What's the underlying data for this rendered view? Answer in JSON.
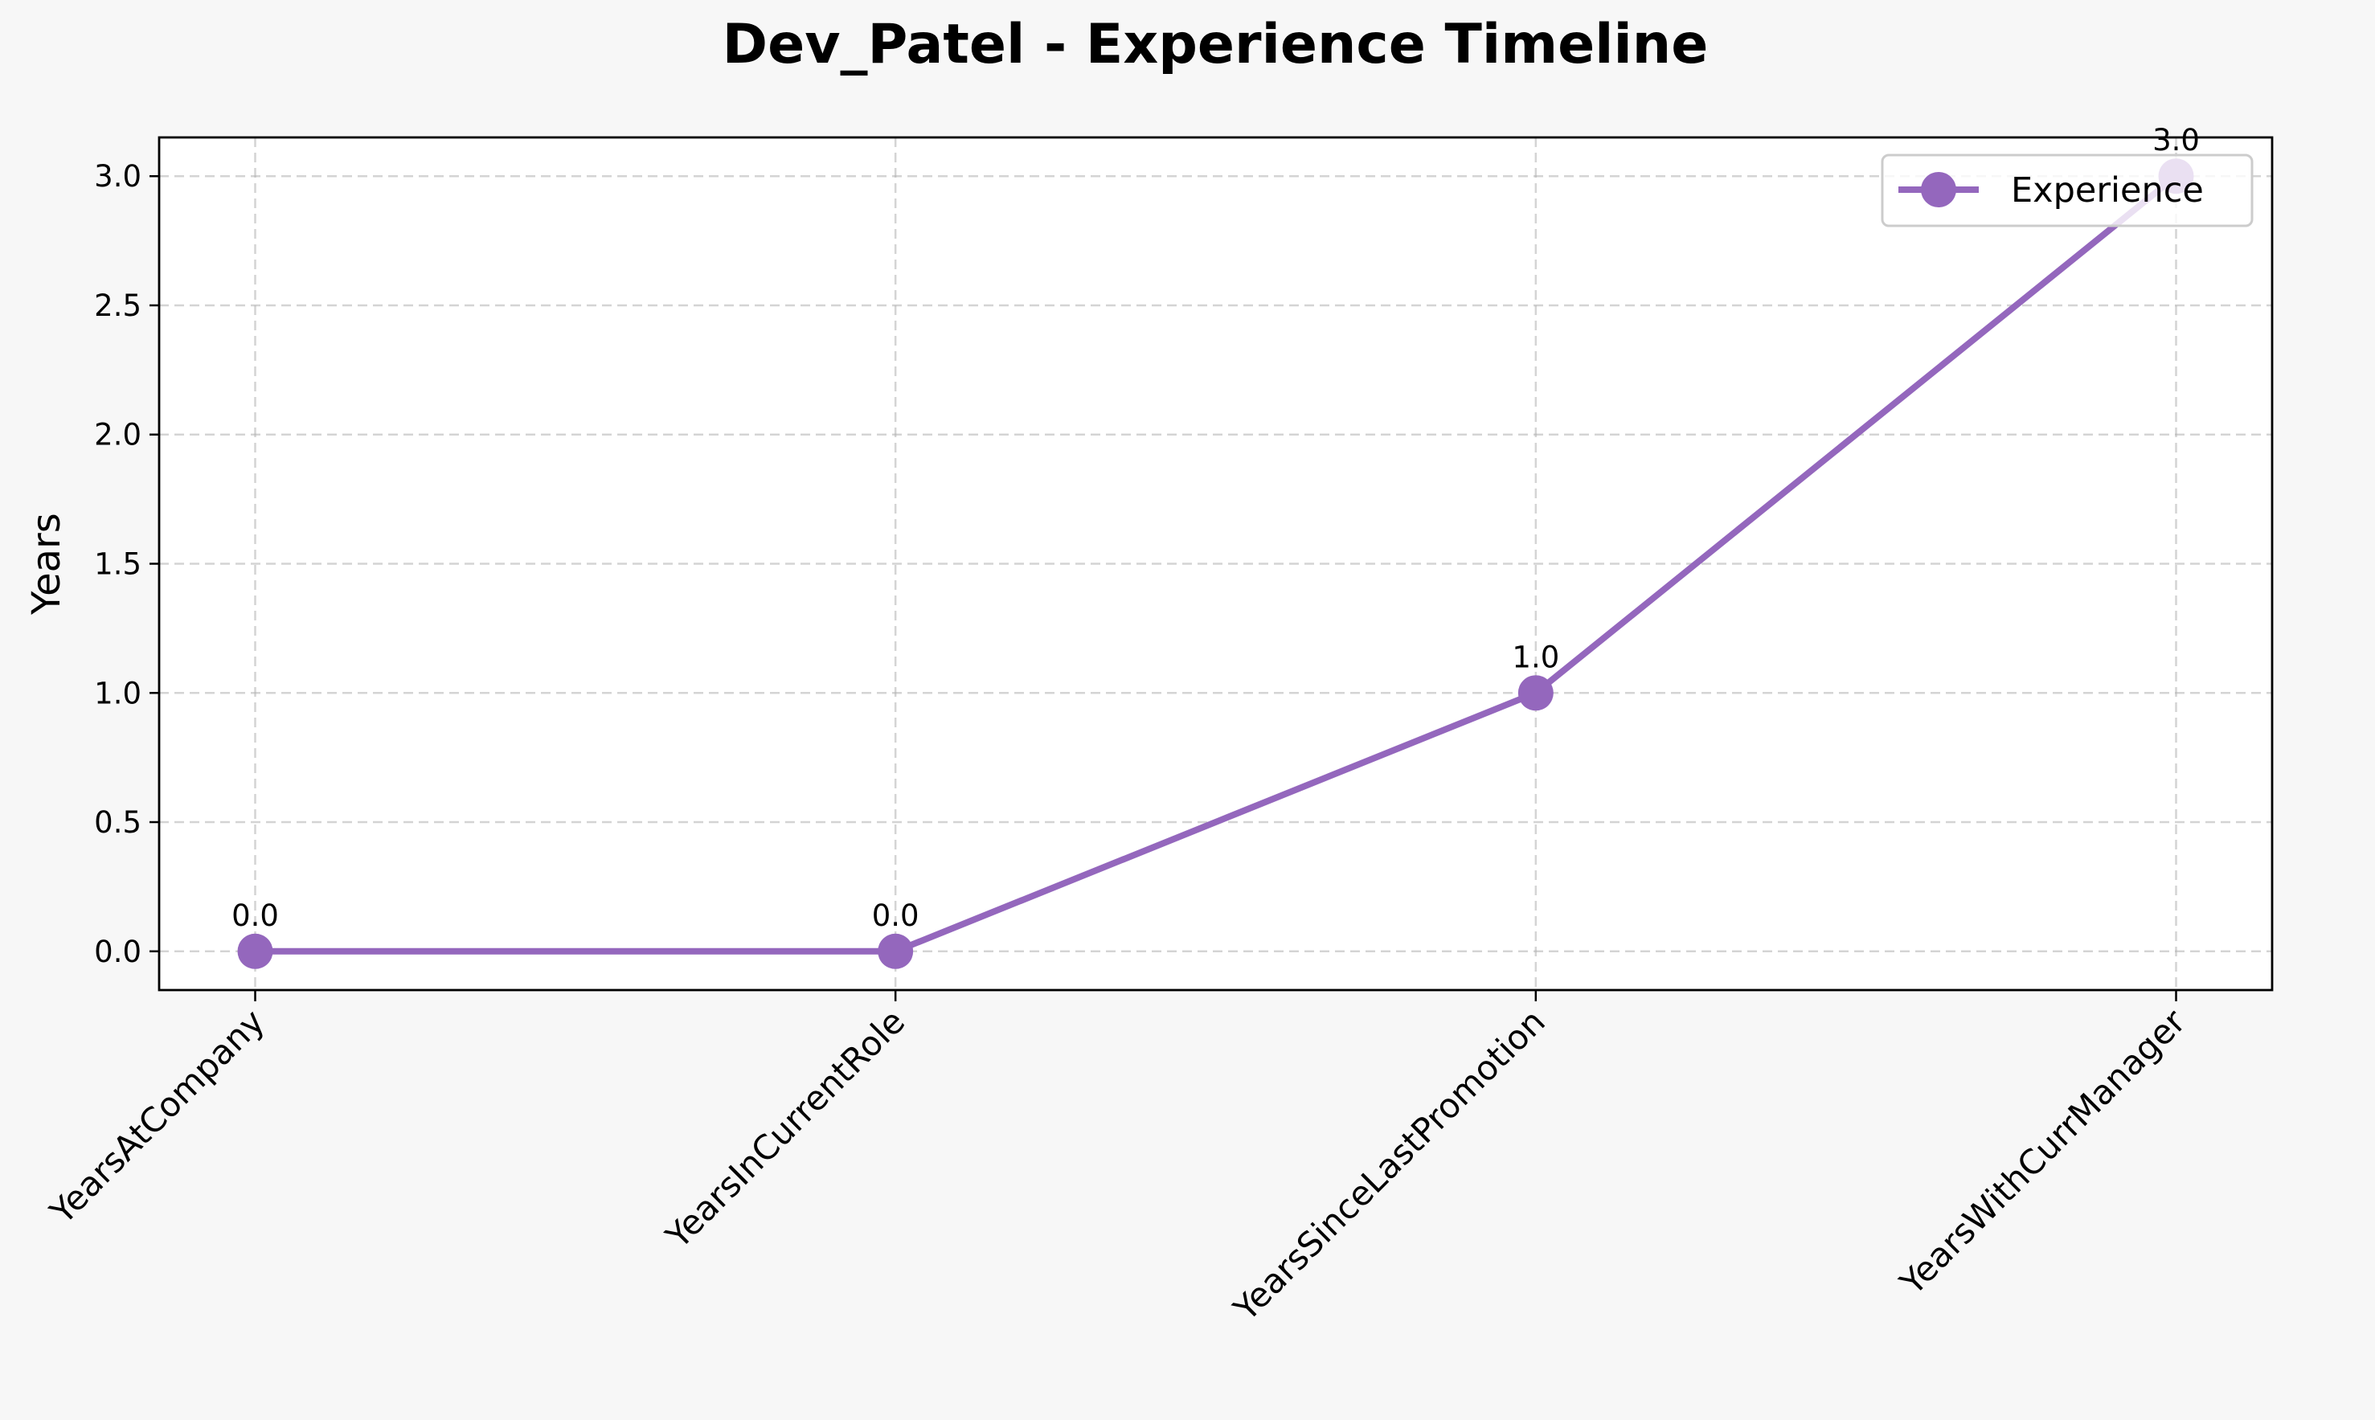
{
  "chart_data": {
    "type": "line",
    "title": "Dev_Patel - Experience Timeline",
    "xlabel": "",
    "ylabel": "Years",
    "categories": [
      "YearsAtCompany",
      "YearsInCurrentRole",
      "YearsSinceLastPromotion",
      "YearsWithCurrManager"
    ],
    "series": [
      {
        "name": "Experience",
        "values": [
          0.0,
          0.0,
          1.0,
          3.0
        ],
        "color": "#9467bd"
      }
    ],
    "data_labels": [
      "0.0",
      "0.0",
      "1.0",
      "3.0"
    ],
    "yticks": [
      0.0,
      0.5,
      1.0,
      1.5,
      2.0,
      2.5,
      3.0
    ],
    "ytick_labels": [
      "0.0",
      "0.5",
      "1.0",
      "1.5",
      "2.0",
      "2.5",
      "3.0"
    ],
    "ylim": [
      -0.15,
      3.15
    ],
    "grid": true,
    "legend_position": "top-right",
    "marker": "circle",
    "background": "#f7f7f7",
    "plot_background": "#ffffff"
  }
}
